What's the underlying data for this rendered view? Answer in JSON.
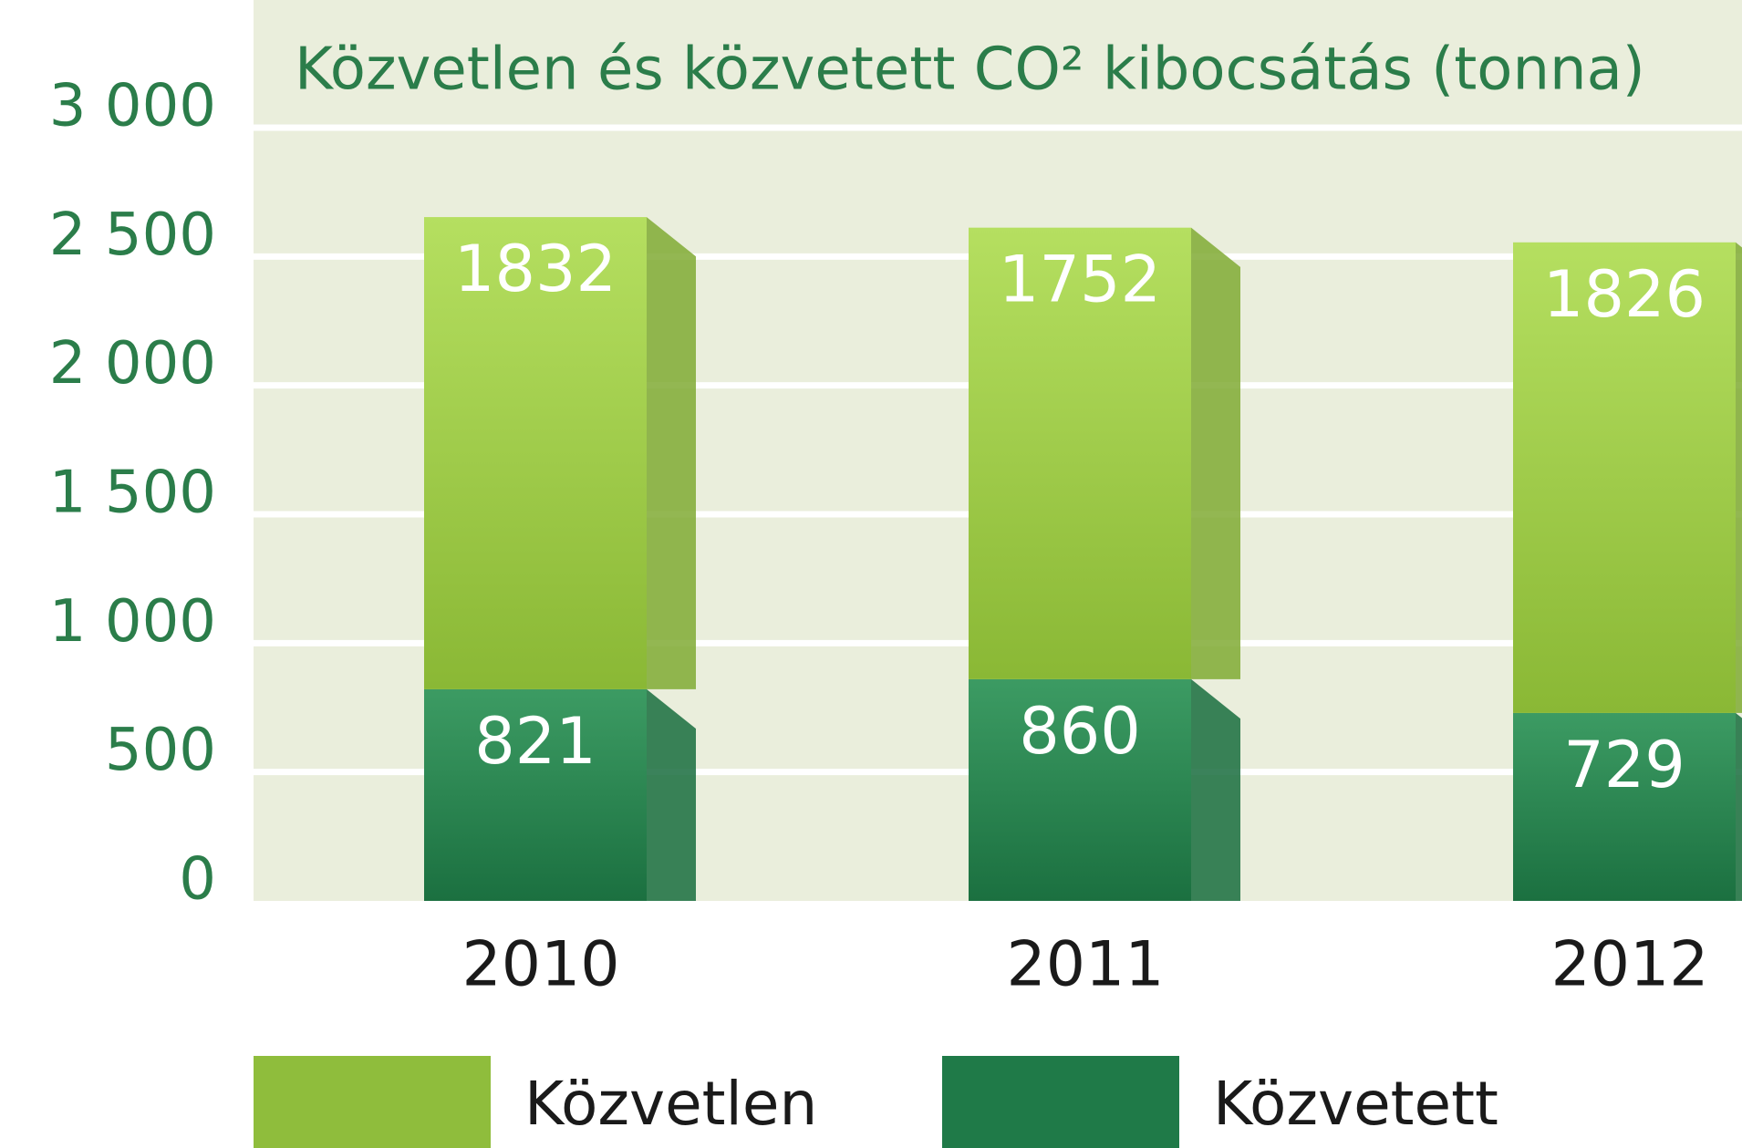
{
  "chart_data": {
    "type": "stacked_bar",
    "title": "Közvetlen és közvetett CO² kibocsátás (tonna)",
    "categories": [
      "2010",
      "2011",
      "2012"
    ],
    "series": [
      {
        "name": "Közvetett",
        "color": "#1f7a48",
        "values": [
          821,
          860,
          729
        ]
      },
      {
        "name": "Közvetlen",
        "color": "#8fbd3c",
        "values": [
          1832,
          1752,
          1826
        ]
      }
    ],
    "ylim": [
      0,
      3000
    ],
    "yticks": [
      0,
      500,
      {
        "value": 1000,
        "label": "1 000"
      },
      {
        "value": 1500,
        "label": "1 500"
      },
      {
        "value": 2000,
        "label": "2 000"
      },
      {
        "value": 2500,
        "label": "2 500"
      },
      {
        "value": 3000,
        "label": "3 000"
      }
    ],
    "grid": true
  }
}
